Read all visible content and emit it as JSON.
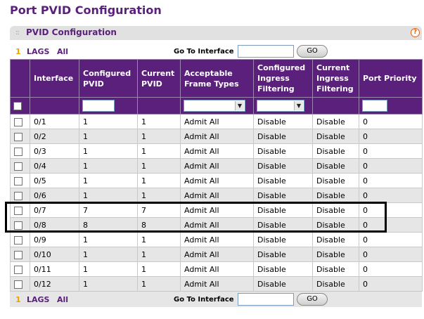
{
  "page": {
    "title": "Port PVID Configuration"
  },
  "panel": {
    "title": "PVID Configuration",
    "help_glyph": "?"
  },
  "nav": {
    "page_num": "1",
    "lags_label": "LAGS",
    "all_label": "All",
    "goto_label": "Go To Interface",
    "goto_value": "",
    "go_button": "GO"
  },
  "columns": [
    "",
    "Interface",
    "Configured PVID",
    "Current PVID",
    "Acceptable Frame Types",
    "Configured Ingress Filtering",
    "Current Ingress Filtering",
    "Port Priority"
  ],
  "rows": [
    {
      "interface": "0/1",
      "configured_pvid": "1",
      "current_pvid": "1",
      "frame_types": "Admit All",
      "cfg_ingress": "Disable",
      "cur_ingress": "Disable",
      "priority": "0"
    },
    {
      "interface": "0/2",
      "configured_pvid": "1",
      "current_pvid": "1",
      "frame_types": "Admit All",
      "cfg_ingress": "Disable",
      "cur_ingress": "Disable",
      "priority": "0"
    },
    {
      "interface": "0/3",
      "configured_pvid": "1",
      "current_pvid": "1",
      "frame_types": "Admit All",
      "cfg_ingress": "Disable",
      "cur_ingress": "Disable",
      "priority": "0"
    },
    {
      "interface": "0/4",
      "configured_pvid": "1",
      "current_pvid": "1",
      "frame_types": "Admit All",
      "cfg_ingress": "Disable",
      "cur_ingress": "Disable",
      "priority": "0"
    },
    {
      "interface": "0/5",
      "configured_pvid": "1",
      "current_pvid": "1",
      "frame_types": "Admit All",
      "cfg_ingress": "Disable",
      "cur_ingress": "Disable",
      "priority": "0"
    },
    {
      "interface": "0/6",
      "configured_pvid": "1",
      "current_pvid": "1",
      "frame_types": "Admit All",
      "cfg_ingress": "Disable",
      "cur_ingress": "Disable",
      "priority": "0"
    },
    {
      "interface": "0/7",
      "configured_pvid": "7",
      "current_pvid": "7",
      "frame_types": "Admit All",
      "cfg_ingress": "Disable",
      "cur_ingress": "Disable",
      "priority": "0"
    },
    {
      "interface": "0/8",
      "configured_pvid": "8",
      "current_pvid": "8",
      "frame_types": "Admit All",
      "cfg_ingress": "Disable",
      "cur_ingress": "Disable",
      "priority": "0"
    },
    {
      "interface": "0/9",
      "configured_pvid": "1",
      "current_pvid": "1",
      "frame_types": "Admit All",
      "cfg_ingress": "Disable",
      "cur_ingress": "Disable",
      "priority": "0"
    },
    {
      "interface": "0/10",
      "configured_pvid": "1",
      "current_pvid": "1",
      "frame_types": "Admit All",
      "cfg_ingress": "Disable",
      "cur_ingress": "Disable",
      "priority": "0"
    },
    {
      "interface": "0/11",
      "configured_pvid": "1",
      "current_pvid": "1",
      "frame_types": "Admit All",
      "cfg_ingress": "Disable",
      "cur_ingress": "Disable",
      "priority": "0"
    },
    {
      "interface": "0/12",
      "configured_pvid": "1",
      "current_pvid": "1",
      "frame_types": "Admit All",
      "cfg_ingress": "Disable",
      "cur_ingress": "Disable",
      "priority": "0"
    }
  ],
  "colors": {
    "brand_purple": "#5b1f7c",
    "accent_orange": "#f0a000",
    "row_alt": "#e6e6e6"
  }
}
